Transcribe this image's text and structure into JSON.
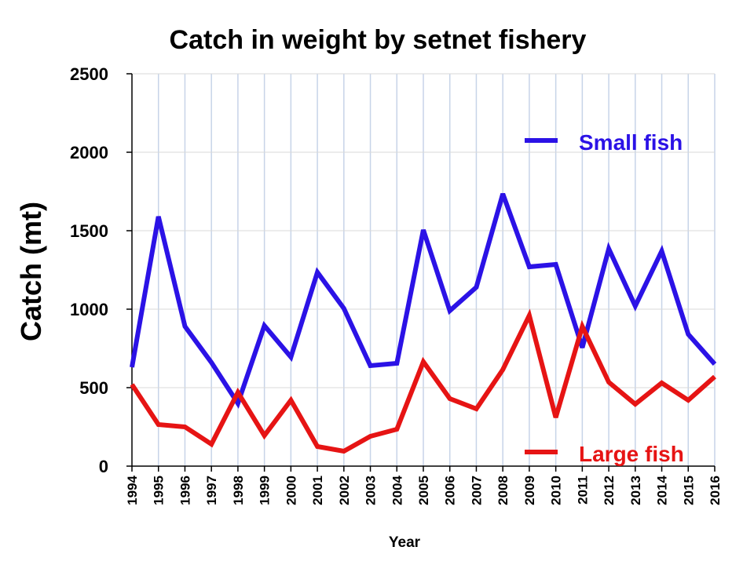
{
  "chart_data": {
    "type": "line",
    "title": "Catch in weight by setnet fishery",
    "xlabel": "Year",
    "ylabel": "Catch (mt)",
    "ylim": [
      0,
      2500
    ],
    "yticks": [
      "0",
      "500",
      "1000",
      "1500",
      "2000",
      "2500"
    ],
    "categories": [
      "1994",
      "1995",
      "1996",
      "1997",
      "1998",
      "1999",
      "2000",
      "2001",
      "2002",
      "2003",
      "2004",
      "2005",
      "2006",
      "2007",
      "2008",
      "2009",
      "2010",
      "2011",
      "2012",
      "2013",
      "2014",
      "2015",
      "2016"
    ],
    "grid": true,
    "series": [
      {
        "name": "Small fish",
        "color": "#2B12E6",
        "values": [
          630,
          1590,
          890,
          660,
          400,
          895,
          695,
          1235,
          1005,
          640,
          655,
          1505,
          990,
          1140,
          1735,
          1270,
          1285,
          755,
          1385,
          1020,
          1370,
          840,
          650
        ]
      },
      {
        "name": "Large fish",
        "color": "#E61414",
        "values": [
          520,
          265,
          250,
          140,
          470,
          195,
          420,
          125,
          95,
          190,
          235,
          665,
          430,
          365,
          615,
          960,
          310,
          890,
          535,
          395,
          530,
          420,
          570
        ]
      }
    ]
  }
}
